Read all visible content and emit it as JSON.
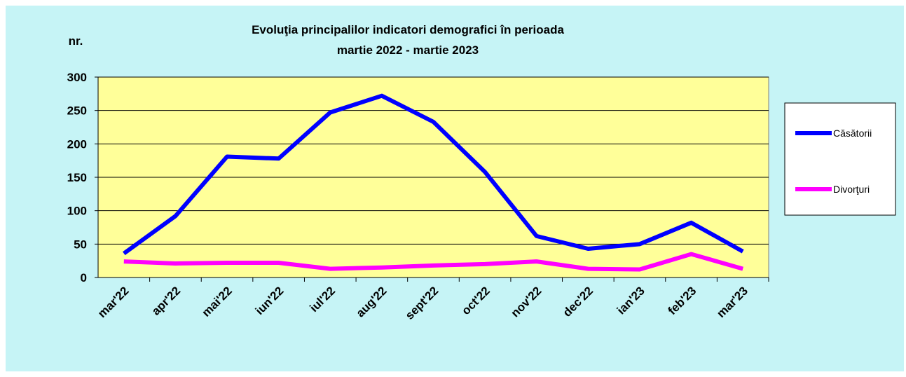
{
  "chart_data": {
    "type": "line",
    "title": [
      "Evoluţia principalilor  indicatori demografici în perioada",
      "martie 2022 - martie 2023"
    ],
    "y_label": "nr.",
    "categories": [
      "mar'22",
      "apr'22",
      "mai'22",
      "iun'22",
      "iul'22",
      "aug'22",
      "sept'22",
      "oct'22",
      "nov'22",
      "dec'22",
      "ian'23",
      "feb'23",
      "mar'23"
    ],
    "series": [
      {
        "name": "Căsătorii",
        "color": "#0000ff",
        "values": [
          36,
          92,
          181,
          178,
          247,
          272,
          233,
          158,
          62,
          43,
          50,
          82,
          39
        ]
      },
      {
        "name": "Divorţuri",
        "color": "#ff00ff",
        "values": [
          24,
          21,
          22,
          22,
          13,
          15,
          18,
          20,
          24,
          13,
          12,
          35,
          13
        ]
      }
    ],
    "ylim": [
      0,
      300
    ],
    "yticks": [
      0,
      50,
      100,
      150,
      200,
      250,
      300
    ],
    "grid": true,
    "legend": "right"
  }
}
